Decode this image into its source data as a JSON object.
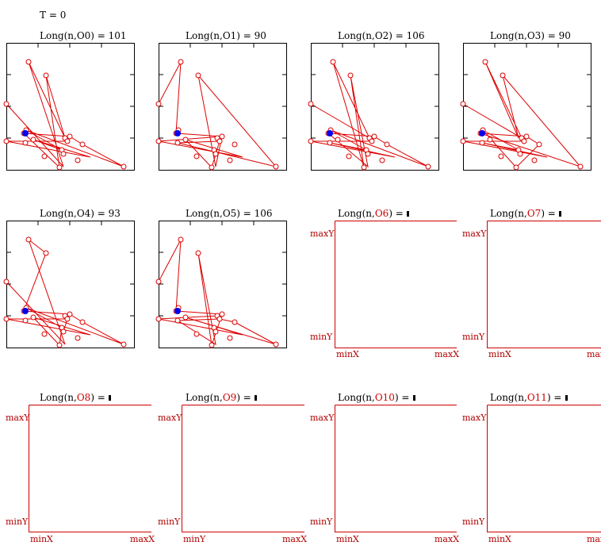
{
  "time_label": "T = 0",
  "panels_filled": [
    {
      "name": "Long(n,O0) = 101"
    },
    {
      "name": "Long(n,O1) = 90"
    },
    {
      "name": "Long(n,O2) = 106"
    },
    {
      "name": "Long(n,O3) = 90"
    },
    {
      "name": "Long(n,O4) = 93"
    },
    {
      "name": "Long(n,O5) = 106"
    }
  ],
  "panels_empty": [
    {
      "prefix": "Long(n,",
      "obj": "O6",
      "suffix": ") =",
      "y_max": "maxY",
      "y_min": "minY",
      "x_min": "minX",
      "x_max": "maxX"
    },
    {
      "prefix": "Long(n,",
      "obj": "O7",
      "suffix": ") =",
      "y_max": "maxY",
      "y_min": "minY",
      "x_min": "minX",
      "x_max": "maxX"
    },
    {
      "prefix": "Long(n,",
      "obj": "O8",
      "suffix": ") =",
      "y_max": "maxY",
      "y_min": "minY",
      "x_min": "minX",
      "x_max": "maxX"
    },
    {
      "prefix": "Long(n,",
      "obj": "O9",
      "suffix": ") =",
      "y_max": "maxY",
      "y_min": "minY",
      "x_min": "minY",
      "x_max": "maxX"
    },
    {
      "prefix": "Long(n,",
      "obj": "O10",
      "suffix": ") =",
      "y_max": "maxY",
      "y_min": "minY",
      "x_min": "minX",
      "x_max": "maxX"
    },
    {
      "prefix": "Long(n,",
      "obj": "O11",
      "suffix": ") =",
      "y_max": "maxY",
      "y_min": "minY",
      "x_min": "minX",
      "x_max": "maxX"
    }
  ],
  "colors": {
    "route": "#dd0000",
    "depot": "#0000ee",
    "frame": "#000000",
    "empty_frame": "#cc0000"
  }
}
